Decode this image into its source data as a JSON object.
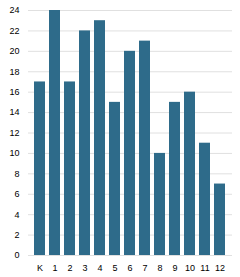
{
  "chart_data": {
    "type": "bar",
    "categories": [
      "K",
      "1",
      "2",
      "3",
      "4",
      "5",
      "6",
      "7",
      "8",
      "9",
      "10",
      "11",
      "12"
    ],
    "values": [
      17,
      24,
      17,
      22,
      23,
      15,
      20,
      21,
      10,
      15,
      16,
      11,
      7
    ],
    "color": "#2e6b8a",
    "ylim": [
      0,
      24
    ],
    "yticks": [
      0,
      2,
      4,
      6,
      8,
      10,
      12,
      14,
      16,
      18,
      20,
      22,
      24
    ],
    "grid": true
  }
}
